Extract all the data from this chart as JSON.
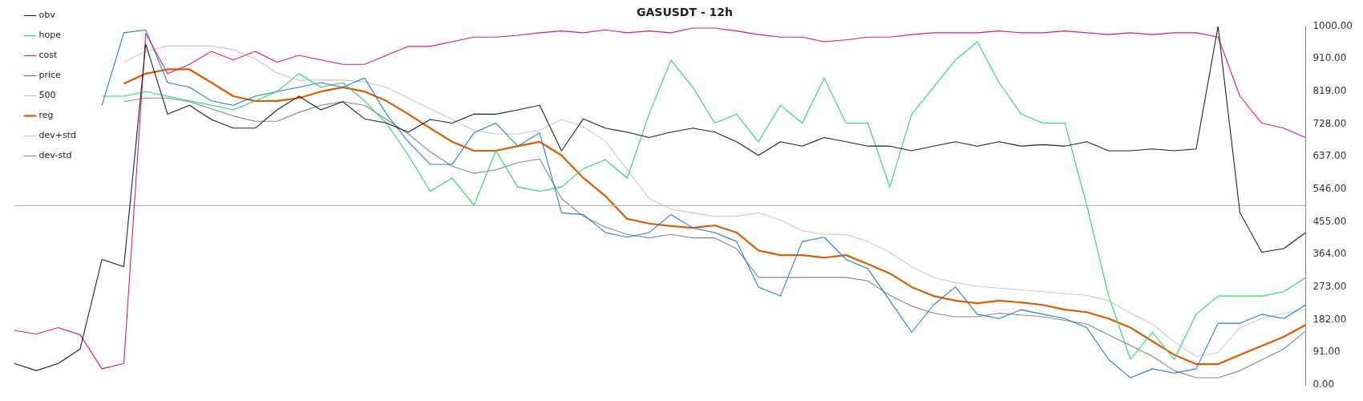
{
  "chart_data": {
    "type": "line",
    "title": "GASUSDT - 12h",
    "categories": [
      null,
      null,
      null,
      null,
      null,
      null,
      null,
      null,
      null,
      null,
      null,
      null,
      null,
      null,
      null,
      null,
      null,
      null,
      null,
      null,
      null,
      null,
      null,
      null,
      null,
      null,
      null,
      null,
      null,
      null,
      null,
      null,
      null,
      null,
      null,
      null,
      null,
      null,
      null,
      null,
      null,
      null,
      null,
      null,
      null,
      null,
      null,
      null,
      null,
      null,
      null,
      null,
      null,
      null,
      null,
      null,
      null,
      null,
      null,
      null
    ],
    "series": [
      {
        "name": "obv",
        "color": "#222222",
        "values": [
          60,
          40,
          60,
          100,
          350,
          330,
          950,
          755,
          780,
          740,
          716,
          716,
          767,
          805,
          767,
          790,
          742,
          730,
          705,
          740,
          730,
          755,
          755,
          767,
          780,
          653,
          742,
          716,
          705,
          690,
          705,
          716,
          705,
          678,
          640,
          678,
          666,
          690,
          678,
          666,
          666,
          653,
          666,
          678,
          666,
          678,
          666,
          670,
          666,
          678,
          653,
          653,
          658,
          653,
          658,
          1000,
          480,
          370,
          380,
          425
        ]
      },
      {
        "name": "hope",
        "color": "#22dd66",
        "values": [
          null,
          null,
          null,
          null,
          805,
          805,
          818,
          805,
          792,
          780,
          767,
          792,
          818,
          868,
          830,
          843,
          792,
          730,
          640,
          540,
          577,
          501,
          653,
          552,
          540,
          552,
          603,
          628,
          577,
          755,
          906,
          830,
          730,
          755,
          678,
          780,
          730,
          856,
          730,
          730,
          552,
          755,
          830,
          906,
          957,
          843,
          755,
          730,
          730,
          501,
          248,
          71,
          147,
          71,
          197,
          248,
          248,
          248,
          260,
          299
        ]
      },
      {
        "name": "cost",
        "color": "#e6197a",
        "values": [
          152,
          142,
          160,
          140,
          45,
          60,
          980,
          868,
          894,
          930,
          906,
          930,
          900,
          919,
          906,
          894,
          894,
          919,
          944,
          944,
          957,
          970,
          970,
          975,
          982,
          987,
          982,
          990,
          982,
          987,
          982,
          995,
          995,
          987,
          977,
          970,
          970,
          957,
          962,
          970,
          970,
          977,
          982,
          982,
          982,
          987,
          982,
          982,
          987,
          982,
          977,
          982,
          977,
          982,
          982,
          970,
          805,
          730,
          716,
          690
        ]
      },
      {
        "name": "price",
        "color": "#1e7fe0",
        "values": [
          null,
          null,
          null,
          null,
          780,
          982,
          990,
          843,
          830,
          792,
          780,
          805,
          818,
          830,
          843,
          830,
          856,
          755,
          678,
          615,
          615,
          703,
          730,
          666,
          703,
          480,
          475,
          425,
          412,
          425,
          475,
          438,
          425,
          400,
          273,
          248,
          400,
          412,
          350,
          324,
          235,
          147,
          223,
          273,
          197,
          185,
          210,
          197,
          185,
          160,
          71,
          20,
          45,
          33,
          45,
          172,
          172,
          197,
          185,
          223
        ]
      },
      {
        "name": "500",
        "color": "#bbbbbb",
        "values": [
          500,
          500,
          500,
          500,
          500,
          500,
          500,
          500,
          500,
          500,
          500,
          500,
          500,
          500,
          500,
          500,
          500,
          500,
          500,
          500,
          500,
          500,
          500,
          500,
          500,
          500,
          500,
          500,
          500,
          500,
          500,
          500,
          500,
          500,
          500,
          500,
          500,
          500,
          500,
          500,
          500,
          500,
          500,
          500,
          500,
          500,
          500,
          500,
          500,
          500,
          500,
          500,
          500,
          500,
          500,
          500,
          500,
          500,
          500,
          500
        ]
      },
      {
        "name": "reg",
        "color": "#e05a00",
        "values": [
          null,
          null,
          null,
          null,
          null,
          840,
          868,
          880,
          880,
          843,
          805,
          792,
          792,
          800,
          818,
          830,
          818,
          792,
          755,
          716,
          678,
          653,
          653,
          666,
          678,
          640,
          577,
          527,
          463,
          450,
          443,
          438,
          445,
          425,
          375,
          362,
          362,
          355,
          362,
          337,
          311,
          273,
          248,
          235,
          228,
          235,
          230,
          223,
          210,
          203,
          185,
          160,
          122,
          84,
          58,
          58,
          84,
          109,
          134,
          167
        ]
      },
      {
        "name": "dev+std",
        "color": "#c8c8c8",
        "values": [
          null,
          null,
          null,
          null,
          null,
          900,
          930,
          945,
          945,
          945,
          935,
          910,
          870,
          850,
          850,
          850,
          845,
          830,
          800,
          770,
          740,
          710,
          700,
          700,
          710,
          740,
          720,
          680,
          600,
          520,
          490,
          480,
          470,
          470,
          480,
          460,
          430,
          420,
          420,
          400,
          370,
          330,
          300,
          285,
          275,
          270,
          265,
          260,
          255,
          250,
          235,
          200,
          170,
          120,
          80,
          90,
          160,
          185,
          200,
          210
        ]
      },
      {
        "name": "dev-std",
        "color": "#888888",
        "values": [
          null,
          null,
          null,
          null,
          null,
          790,
          800,
          800,
          790,
          770,
          750,
          735,
          735,
          760,
          780,
          790,
          780,
          740,
          700,
          650,
          610,
          590,
          600,
          620,
          630,
          520,
          470,
          440,
          420,
          410,
          420,
          410,
          410,
          380,
          300,
          300,
          300,
          300,
          300,
          290,
          250,
          220,
          200,
          190,
          190,
          200,
          195,
          190,
          180,
          170,
          140,
          110,
          80,
          40,
          20,
          20,
          40,
          70,
          100,
          150
        ]
      }
    ],
    "ylim": [
      0,
      1000
    ],
    "yticks": [
      {
        "value": 0,
        "label": "0.00"
      },
      {
        "value": 91,
        "label": "91.00"
      },
      {
        "value": 182,
        "label": "182.00"
      },
      {
        "value": 273,
        "label": "273.00"
      },
      {
        "value": 364,
        "label": "364.00"
      },
      {
        "value": 455,
        "label": "455.00"
      },
      {
        "value": 546,
        "label": "546.00"
      },
      {
        "value": 637,
        "label": "637.00"
      },
      {
        "value": 728,
        "label": "728.00"
      },
      {
        "value": 819,
        "label": "819.00"
      },
      {
        "value": 910,
        "label": "910.00"
      },
      {
        "value": 1000,
        "label": "1000.00"
      }
    ],
    "tick_labels": "y",
    "grid": false,
    "legend": "top left",
    "marker": "none",
    "line_style": "solid"
  }
}
